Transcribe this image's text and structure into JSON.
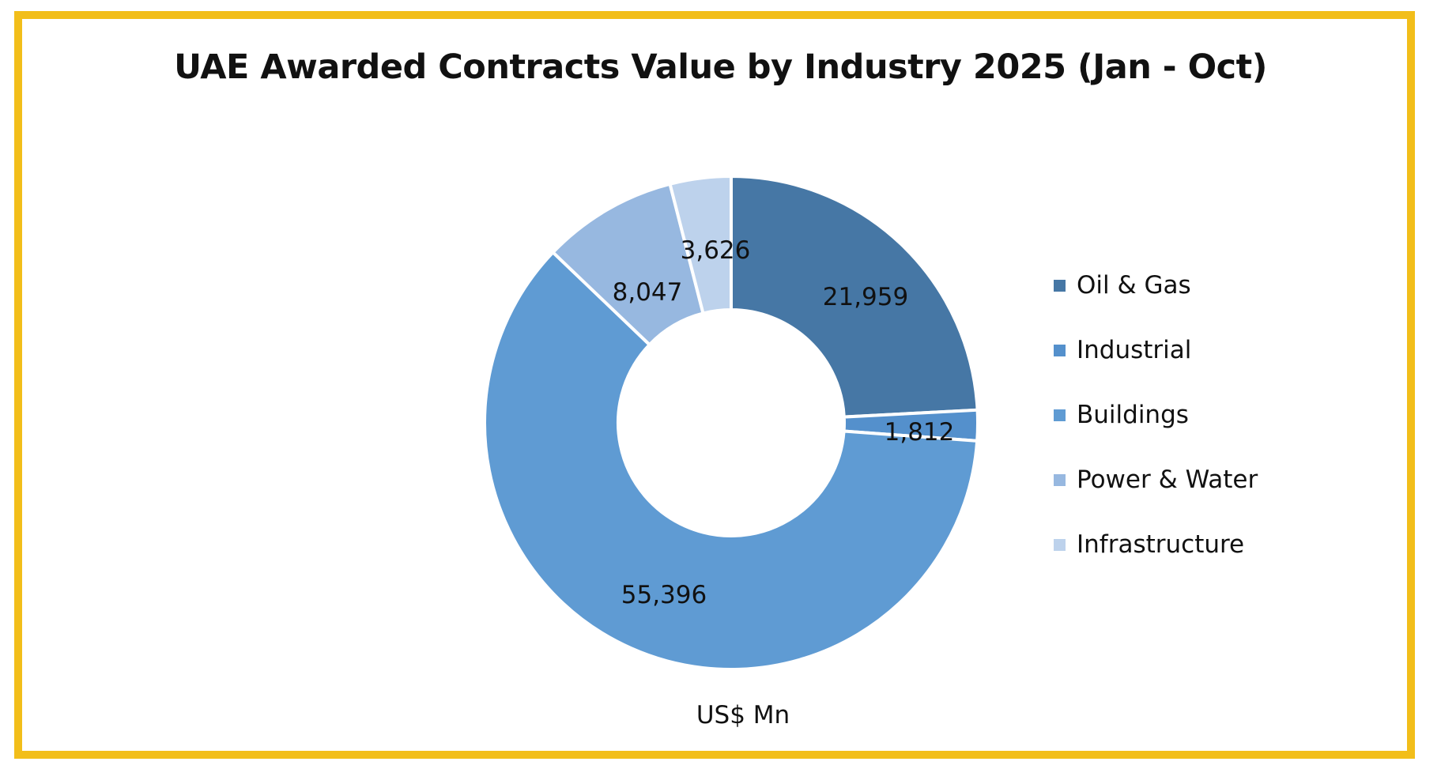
{
  "chart_data": {
    "type": "pie",
    "variant": "donut",
    "title": "UAE Awarded Contracts Value by Industry 2025 (Jan - Oct)",
    "unit_label": "US$ Mn",
    "start": "12 o'clock",
    "direction": "clockwise",
    "legend_position": "right",
    "categories": [
      "Oil & Gas",
      "Industrial",
      "Buildings",
      "Power & Water",
      "Infrastructure"
    ],
    "values": [
      21959,
      1812,
      55396,
      8047,
      3626
    ],
    "data_labels": [
      "21,959",
      "1,812",
      "55,396",
      "8,047",
      "3,626"
    ],
    "colors": [
      "#4677A5",
      "#5490CC",
      "#5F9BD3",
      "#97B8E0",
      "#BDD2EC"
    ]
  },
  "frame": {
    "border_color": "#F2BE1A"
  }
}
